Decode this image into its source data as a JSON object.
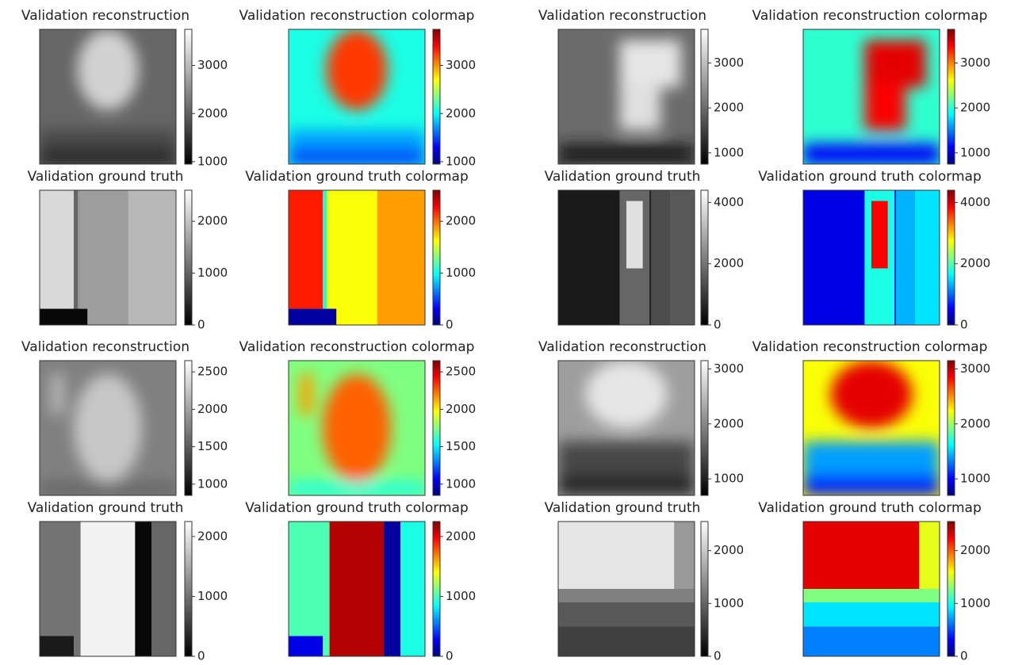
{
  "chart_data": [
    {
      "type": "image",
      "title": "Validation reconstruction",
      "colormap": "gray",
      "ylim": [
        950,
        3750
      ],
      "yticks": [
        1000,
        2000,
        3000
      ]
    },
    {
      "type": "image",
      "title": "Validation reconstruction colormap",
      "colormap": "jet",
      "ylim": [
        950,
        3750
      ],
      "yticks": [
        1000,
        2000,
        3000
      ]
    },
    {
      "type": "image",
      "title": "Validation reconstruction",
      "colormap": "gray",
      "ylim": [
        750,
        3750
      ],
      "yticks": [
        1000,
        2000,
        3000
      ]
    },
    {
      "type": "image",
      "title": "Validation reconstruction colormap",
      "colormap": "jet",
      "ylim": [
        750,
        3750
      ],
      "yticks": [
        1000,
        2000,
        3000
      ]
    },
    {
      "type": "image",
      "title": "Validation ground truth",
      "colormap": "gray",
      "ylim": [
        0,
        2600
      ],
      "yticks": [
        0,
        1000,
        2000
      ]
    },
    {
      "type": "image",
      "title": "Validation ground truth colormap",
      "colormap": "jet",
      "ylim": [
        0,
        2600
      ],
      "yticks": [
        0,
        1000,
        2000
      ]
    },
    {
      "type": "image",
      "title": "Validation ground truth",
      "colormap": "gray",
      "ylim": [
        0,
        4400
      ],
      "yticks": [
        0,
        2000,
        4000
      ]
    },
    {
      "type": "image",
      "title": "Validation ground truth colormap",
      "colormap": "jet",
      "ylim": [
        0,
        4400
      ],
      "yticks": [
        0,
        2000,
        4000
      ]
    },
    {
      "type": "image",
      "title": "Validation reconstruction",
      "colormap": "gray",
      "ylim": [
        850,
        2650
      ],
      "yticks": [
        1000,
        1500,
        2000,
        2500
      ]
    },
    {
      "type": "image",
      "title": "Validation reconstruction colormap",
      "colormap": "jet",
      "ylim": [
        850,
        2650
      ],
      "yticks": [
        1000,
        1500,
        2000,
        2500
      ]
    },
    {
      "type": "image",
      "title": "Validation reconstruction",
      "colormap": "gray",
      "ylim": [
        700,
        3150
      ],
      "yticks": [
        1000,
        2000,
        3000
      ]
    },
    {
      "type": "image",
      "title": "Validation reconstruction colormap",
      "colormap": "jet",
      "ylim": [
        700,
        3150
      ],
      "yticks": [
        1000,
        2000,
        3000
      ]
    },
    {
      "type": "image",
      "title": "Validation ground truth",
      "colormap": "gray",
      "ylim": [
        0,
        2250
      ],
      "yticks": [
        0,
        1000,
        2000
      ]
    },
    {
      "type": "image",
      "title": "Validation ground truth colormap",
      "colormap": "jet",
      "ylim": [
        0,
        2250
      ],
      "yticks": [
        0,
        1000,
        2000
      ]
    },
    {
      "type": "image",
      "title": "Validation ground truth",
      "colormap": "gray",
      "ylim": [
        0,
        2550
      ],
      "yticks": [
        0,
        1000,
        2000
      ]
    },
    {
      "type": "image",
      "title": "Validation ground truth colormap",
      "colormap": "jet",
      "ylim": [
        0,
        2550
      ],
      "yticks": [
        0,
        1000,
        2000
      ]
    }
  ]
}
